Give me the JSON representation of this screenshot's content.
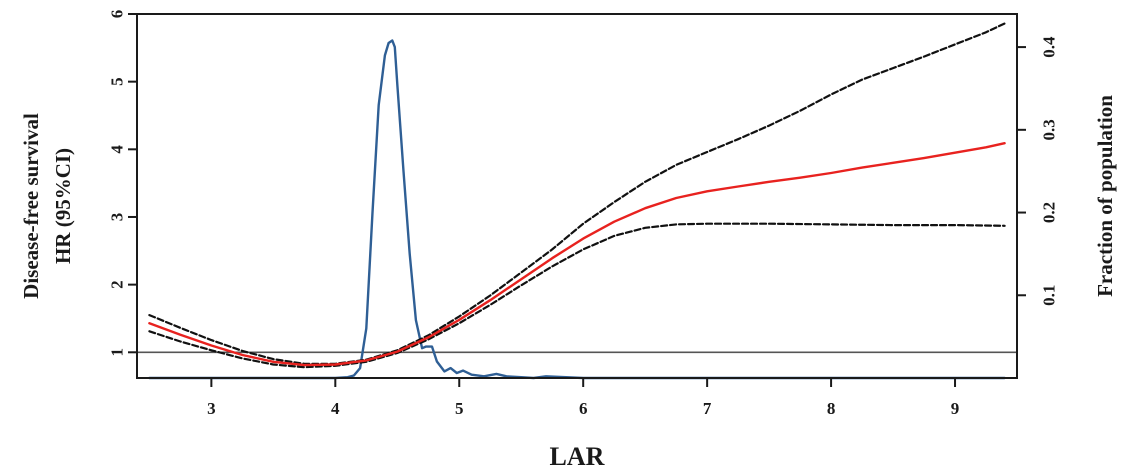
{
  "chart_data": {
    "type": "line",
    "title": "",
    "xlabel": "LAR",
    "ylabel_lines": [
      "Disease-free survival",
      "HR (95%CI)"
    ],
    "y2label": "Fraction of population",
    "xlim": [
      2.4,
      9.5
    ],
    "ylim": [
      0.62,
      6.0
    ],
    "y2lim": [
      0.0,
      0.44
    ],
    "x_ticks": [
      3,
      4,
      5,
      6,
      7,
      8,
      9
    ],
    "y_ticks": [
      1,
      2,
      3,
      4,
      5,
      6
    ],
    "y2_ticks": [
      0.1,
      0.2,
      0.3,
      0.4
    ],
    "reference_line": 1,
    "grid": false,
    "colors": {
      "hr": "#e8221f",
      "ci": "#111111",
      "density": "#2f5f95",
      "reference": "#555555"
    },
    "series": [
      {
        "key": "hr",
        "axis": "left",
        "style": "solid",
        "x": [
          2.5,
          2.75,
          3.0,
          3.25,
          3.5,
          3.75,
          4.0,
          4.25,
          4.5,
          4.75,
          5.0,
          5.25,
          5.5,
          5.75,
          6.0,
          6.25,
          6.5,
          6.75,
          7.0,
          7.25,
          7.5,
          7.75,
          8.0,
          8.25,
          8.5,
          8.75,
          9.0,
          9.25,
          9.4
        ],
        "values": [
          1.43,
          1.26,
          1.1,
          0.96,
          0.86,
          0.81,
          0.82,
          0.88,
          1.01,
          1.22,
          1.48,
          1.77,
          2.08,
          2.39,
          2.68,
          2.93,
          3.13,
          3.28,
          3.38,
          3.45,
          3.52,
          3.58,
          3.65,
          3.73,
          3.8,
          3.87,
          3.95,
          4.03,
          4.09
        ]
      },
      {
        "key": "ci_upper",
        "axis": "left",
        "style": "dashed",
        "x": [
          2.5,
          2.75,
          3.0,
          3.25,
          3.5,
          3.75,
          4.0,
          4.25,
          4.5,
          4.75,
          5.0,
          5.25,
          5.5,
          5.75,
          6.0,
          6.25,
          6.5,
          6.75,
          7.0,
          7.25,
          7.5,
          7.75,
          8.0,
          8.25,
          8.5,
          8.75,
          9.0,
          9.25,
          9.4
        ],
        "values": [
          1.55,
          1.36,
          1.18,
          1.02,
          0.9,
          0.83,
          0.83,
          0.89,
          1.03,
          1.25,
          1.53,
          1.84,
          2.18,
          2.52,
          2.9,
          3.22,
          3.52,
          3.77,
          3.96,
          4.15,
          4.35,
          4.57,
          4.81,
          5.03,
          5.2,
          5.37,
          5.55,
          5.73,
          5.86
        ]
      },
      {
        "key": "ci_lower",
        "axis": "left",
        "style": "dashed",
        "x": [
          2.5,
          2.75,
          3.0,
          3.25,
          3.5,
          3.75,
          4.0,
          4.25,
          4.5,
          4.75,
          5.0,
          5.25,
          5.5,
          5.75,
          6.0,
          6.25,
          6.5,
          6.75,
          7.0,
          7.5,
          8.0,
          8.5,
          9.0,
          9.4
        ],
        "values": [
          1.31,
          1.16,
          1.03,
          0.91,
          0.82,
          0.78,
          0.8,
          0.86,
          0.99,
          1.19,
          1.43,
          1.7,
          1.99,
          2.27,
          2.52,
          2.72,
          2.84,
          2.89,
          2.9,
          2.9,
          2.89,
          2.88,
          2.88,
          2.87
        ]
      },
      {
        "key": "density",
        "axis": "right",
        "style": "solid",
        "x": [
          2.5,
          4.0,
          4.1,
          4.15,
          4.2,
          4.25,
          4.3,
          4.35,
          4.4,
          4.43,
          4.46,
          4.48,
          4.5,
          4.55,
          4.6,
          4.65,
          4.7,
          4.73,
          4.78,
          4.82,
          4.88,
          4.93,
          4.98,
          5.03,
          5.1,
          5.2,
          5.3,
          5.38,
          5.5,
          5.6,
          5.7,
          6.0,
          7.0,
          9.4
        ],
        "values": [
          0.0,
          0.0,
          0.001,
          0.003,
          0.012,
          0.06,
          0.2,
          0.33,
          0.39,
          0.405,
          0.408,
          0.4,
          0.355,
          0.25,
          0.15,
          0.07,
          0.036,
          0.038,
          0.038,
          0.02,
          0.008,
          0.012,
          0.006,
          0.009,
          0.004,
          0.002,
          0.005,
          0.002,
          0.001,
          0.0,
          0.002,
          0.0,
          0.0,
          0.0
        ]
      }
    ]
  }
}
